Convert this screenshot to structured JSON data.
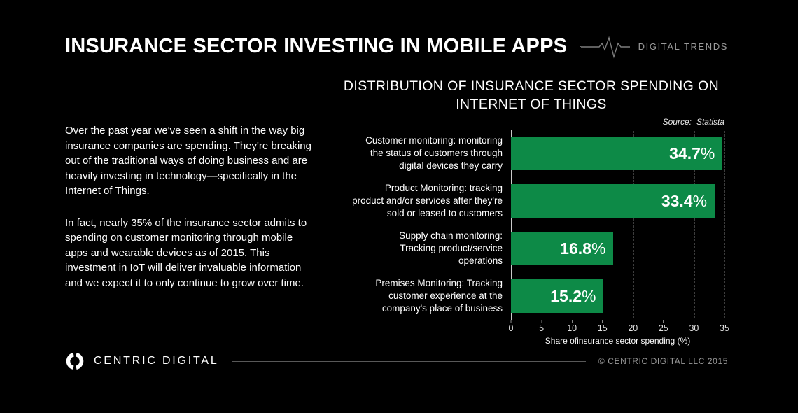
{
  "colors": {
    "background": "#000000",
    "bar_green": "#0d8a47",
    "text": "#ffffff",
    "muted_gray": "#9a9a9a"
  },
  "header": {
    "title": "INSURANCE SECTOR INVESTING IN MOBILE APPS",
    "brand": "DIGITAL TRENDS"
  },
  "intro": {
    "paragraph1": "Over the past year we've seen a shift in the way big insurance companies are spending.  They're breaking out of the traditional ways of doing business and are heavily investing in technology—specifically in the Internet of Things.",
    "paragraph2": "In fact, nearly 35% of the insurance sector admits to spending on customer monitoring through mobile apps and wearable devices as of 2015. This investment in IoT will deliver invaluable information and we expect it to only continue to grow over time."
  },
  "chart": {
    "title_line1": "DISTRIBUTION OF INSURANCE SECTOR SPENDING ON",
    "title_line2": "INTERNET OF THINGS",
    "source_label": "Source:",
    "source_value": "Statista"
  },
  "chart_data": {
    "type": "bar",
    "orientation": "horizontal",
    "title": "DISTRIBUTION OF INSURANCE SECTOR SPENDING ON INTERNET OF THINGS",
    "source": "Source: Statista",
    "categories": [
      "Customer monitoring: monitoring\nthe status of customers through\ndigital devices they carry",
      "Product Monitoring: tracking\nproduct and/or services after they're\nsold or leased to customers",
      "Supply chain monitoring:\nTracking product/service\noperations",
      "Premises Monitoring: Tracking\ncustomer experience at the\ncompany's place of business"
    ],
    "values": [
      34.7,
      33.4,
      16.8,
      15.2
    ],
    "unit": "%",
    "xlabel": "Share ofinsurance sector spending (%)",
    "xlim": [
      0,
      35
    ],
    "xticks": [
      0,
      5,
      10,
      15,
      20,
      25,
      30,
      35
    ],
    "grid": "vertical-dashed",
    "bar_color": "#0d8a47",
    "legend": null
  },
  "footer": {
    "brand": "CENTRIC DIGITAL",
    "copyright": "© CENTRIC DIGITAL LLC 2015"
  }
}
